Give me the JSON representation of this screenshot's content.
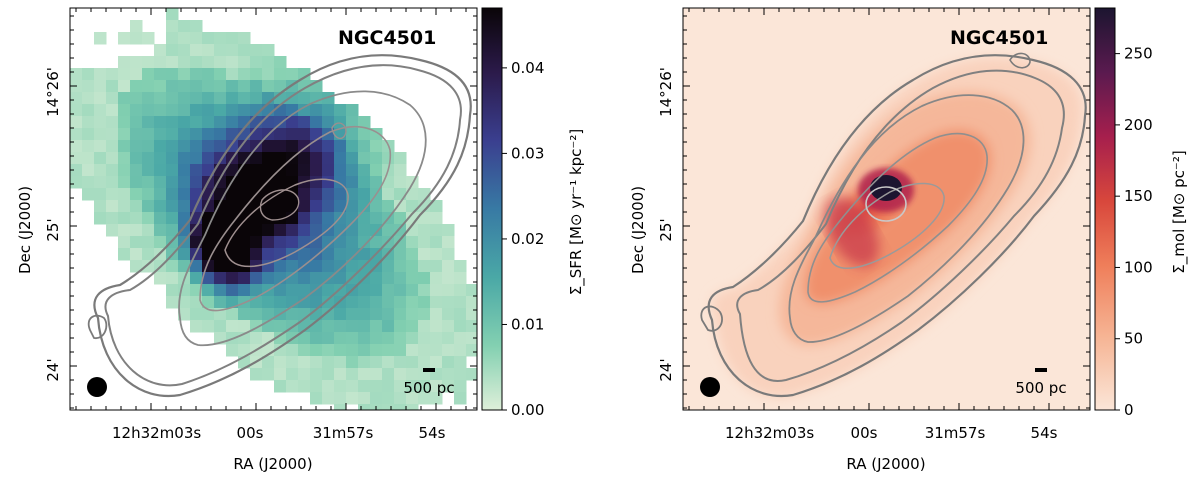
{
  "panels": [
    {
      "id": "sfr",
      "galaxy_name": "NGC4501",
      "xlabel": "RA (J2000)",
      "ylabel": "Dec (J2000)",
      "ra_ticks": [
        "12h32m03s",
        "00s",
        "31m57s",
        "54s"
      ],
      "dec_ticks": [
        "14°26'",
        "25'",
        "24'"
      ],
      "scalebar_label": "500 pc",
      "colorbar_label": "Σ_SFR [M⊙ yr⁻¹ kpc⁻²]",
      "colorbar_ticks": [
        "0.00",
        "0.01",
        "0.02",
        "0.03",
        "0.04"
      ],
      "colorbar_range": [
        0,
        0.047
      ],
      "colormap": [
        "#deefd9",
        "#83d0b1",
        "#4aa8a6",
        "#387aa4",
        "#3a3f8f",
        "#2b1a4a",
        "#0a0508"
      ]
    },
    {
      "id": "mol",
      "galaxy_name": "NGC4501",
      "xlabel": "RA (J2000)",
      "ylabel": "Dec (J2000)",
      "ra_ticks": [
        "12h32m03s",
        "00s",
        "31m57s",
        "54s"
      ],
      "dec_ticks": [
        "14°26'",
        "25'",
        "24'"
      ],
      "scalebar_label": "500 pc",
      "colorbar_label": "Σ_mol [M⊙ pc⁻²]",
      "colorbar_ticks": [
        "0",
        "50",
        "100",
        "150",
        "200",
        "250"
      ],
      "colorbar_range": [
        0,
        282
      ],
      "colormap": [
        "#fbe6d8",
        "#f6b595",
        "#ef7e5a",
        "#d8473c",
        "#a61f4d",
        "#5a1a4f",
        "#1c1530"
      ]
    }
  ]
}
